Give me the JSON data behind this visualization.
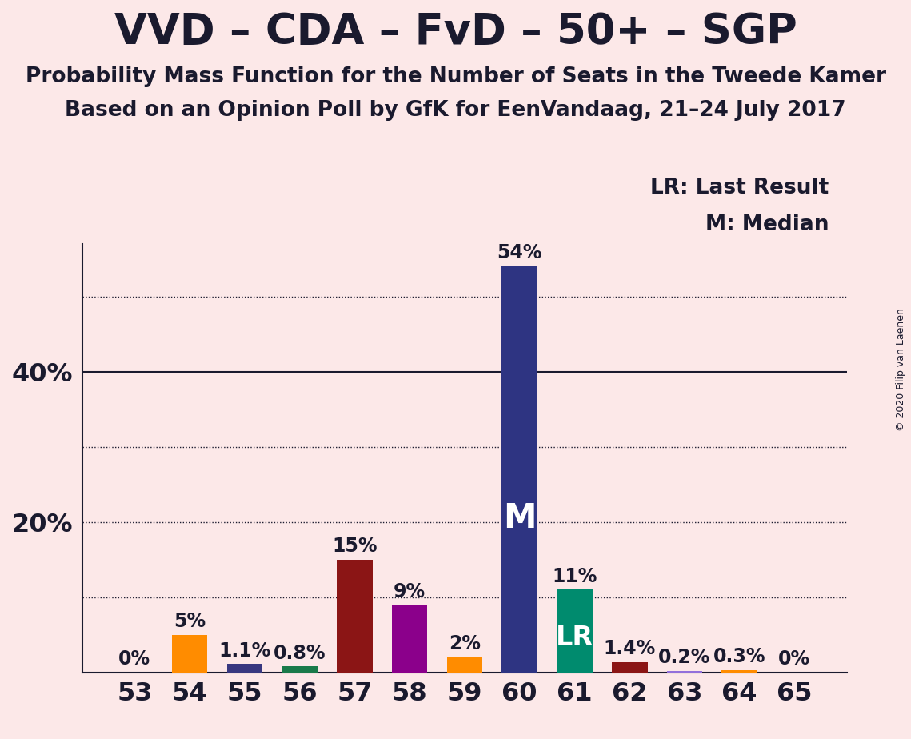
{
  "title": "VVD – CDA – FvD – 50+ – SGP",
  "subtitle1": "Probability Mass Function for the Number of Seats in the Tweede Kamer",
  "subtitle2": "Based on an Opinion Poll by GfK for EenVandaag, 21–24 July 2017",
  "copyright": "© 2020 Filip van Laenen",
  "legend_lr": "LR: Last Result",
  "legend_m": "M: Median",
  "background_color": "#fce8e8",
  "categories": [
    53,
    54,
    55,
    56,
    57,
    58,
    59,
    60,
    61,
    62,
    63,
    64,
    65
  ],
  "values": [
    0.0,
    5.0,
    1.1,
    0.8,
    15.0,
    9.0,
    2.0,
    54.0,
    11.0,
    1.4,
    0.2,
    0.3,
    0.0
  ],
  "labels": [
    "0%",
    "5%",
    "1.1%",
    "0.8%",
    "15%",
    "9%",
    "2%",
    "54%",
    "11%",
    "1.4%",
    "0.2%",
    "0.3%",
    "0%"
  ],
  "colors": [
    "#FF8C00",
    "#FF8C00",
    "#383880",
    "#1a7a4a",
    "#8B1515",
    "#8B008B",
    "#FF8C00",
    "#2e3482",
    "#008b6e",
    "#8B1515",
    "#9370DB",
    "#FF8C00",
    "#FF8C00"
  ],
  "median_seat": 60,
  "lr_seat": 61,
  "ylim_max": 57,
  "solid_grid": [
    40
  ],
  "dotted_grid": [
    10,
    20,
    30,
    50
  ],
  "bar_width": 0.65,
  "title_fontsize": 38,
  "subtitle_fontsize": 19,
  "tick_fontsize": 23,
  "bar_label_fontsize": 17,
  "legend_fontsize": 19,
  "m_label_fontsize": 30,
  "lr_label_fontsize": 24,
  "ytick_positions": [
    20,
    40
  ],
  "ytick_labels": [
    "20%",
    "40%"
  ]
}
